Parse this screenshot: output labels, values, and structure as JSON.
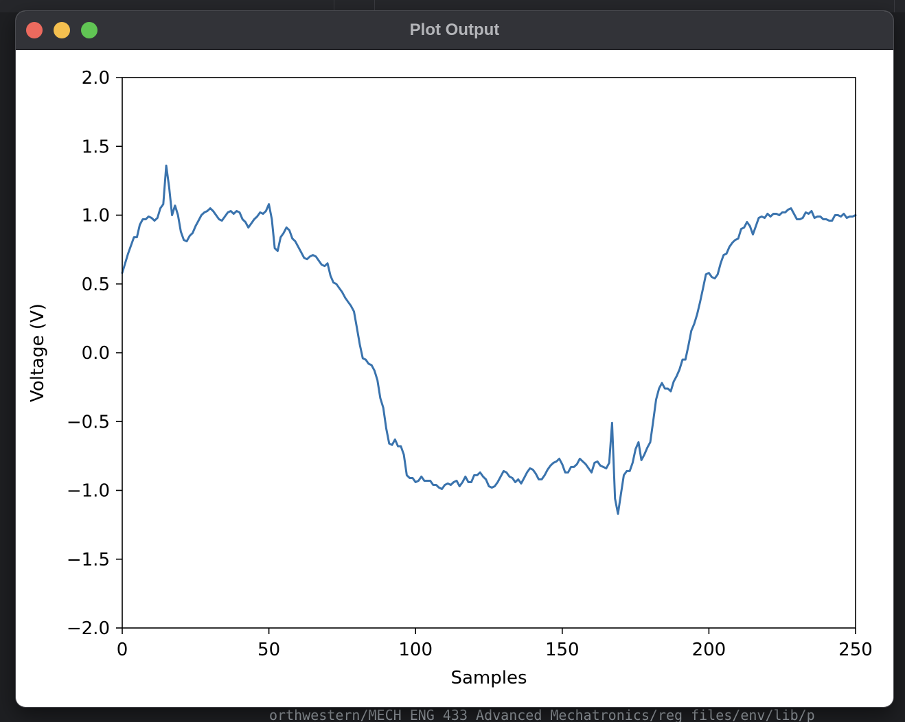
{
  "window": {
    "title": "Plot Output",
    "controls": [
      "close",
      "minimize",
      "maximize"
    ]
  },
  "background": {
    "terminal_line": "orthwestern/MECH ENG 433 Advanced Mechatronics/reg files/env/lib/p"
  },
  "colors": {
    "line": "#3a73ad",
    "close": "#ec6a5e",
    "minimize": "#f4bf4f",
    "maximize": "#61c554",
    "titlebar": "#323338"
  },
  "chart_data": {
    "type": "line",
    "title": "",
    "xlabel": "Samples",
    "ylabel": "Voltage (V)",
    "xlim": [
      0,
      250
    ],
    "ylim": [
      -2.0,
      2.0
    ],
    "xticks": [
      0,
      50,
      100,
      150,
      200,
      250
    ],
    "xtick_labels": [
      "0",
      "50",
      "100",
      "150",
      "200",
      "250"
    ],
    "yticks": [
      2.0,
      1.5,
      1.0,
      0.5,
      0.0,
      -0.5,
      -1.0,
      -1.5,
      -2.0
    ],
    "ytick_labels": [
      "2.0",
      "1.5",
      "1.0",
      "0.5",
      "0.0",
      "−0.5",
      "−1.0",
      "−1.5",
      "−2.0"
    ],
    "grid": false,
    "legend": "none",
    "series": [
      {
        "x": [
          0,
          2,
          4,
          5,
          6,
          7,
          8,
          9,
          10,
          11,
          12,
          13,
          14,
          15,
          16,
          17,
          18,
          19,
          20,
          21,
          22,
          23,
          24,
          25,
          26,
          27,
          28,
          29,
          30,
          31,
          32,
          33,
          34,
          35,
          36,
          37,
          38,
          39,
          40,
          41,
          42,
          43,
          44,
          45,
          46,
          47,
          48,
          49,
          50,
          51,
          52,
          53,
          54,
          55,
          56,
          57,
          58,
          59,
          60,
          61,
          62,
          63,
          64,
          65,
          66,
          67,
          68,
          69,
          70,
          71,
          72,
          73,
          74,
          75,
          76,
          77,
          78,
          79,
          80,
          81,
          82,
          83,
          84,
          85,
          86,
          87,
          88,
          89,
          90,
          91,
          92,
          93,
          94,
          95,
          96,
          97,
          98,
          99,
          100,
          101,
          102,
          103,
          104,
          105,
          106,
          107,
          108,
          109,
          110,
          111,
          112,
          113,
          114,
          115,
          116,
          117,
          118,
          119,
          120,
          121,
          122,
          123,
          124,
          125,
          126,
          127,
          128,
          129,
          130,
          131,
          132,
          133,
          134,
          135,
          136,
          137,
          138,
          139,
          140,
          141,
          142,
          143,
          144,
          145,
          146,
          147,
          148,
          149,
          150,
          151,
          152,
          153,
          154,
          155,
          156,
          157,
          158,
          159,
          160,
          161,
          162,
          163,
          164,
          165,
          166,
          167,
          168,
          169,
          170,
          171,
          172,
          173,
          174,
          175,
          176,
          177,
          178,
          179,
          180,
          181,
          182,
          183,
          184,
          185,
          186,
          187,
          188,
          189,
          190,
          191,
          192,
          193,
          194,
          195,
          196,
          197,
          198,
          199,
          200,
          201,
          202,
          203,
          204,
          205,
          206,
          207,
          208,
          209,
          210,
          211,
          212,
          213,
          214,
          215,
          216,
          217,
          218,
          219,
          220,
          221,
          222,
          223,
          224,
          225,
          226,
          227,
          228,
          229,
          230,
          231,
          232,
          233,
          234,
          235,
          236,
          237,
          238,
          239,
          240,
          241,
          242,
          243,
          244,
          245,
          246,
          247,
          248,
          249,
          250
        ],
        "y": [
          0.58,
          0.72,
          0.84,
          0.84,
          0.93,
          0.97,
          0.97,
          0.99,
          0.98,
          0.96,
          0.98,
          1.05,
          1.08,
          1.36,
          1.2,
          1.0,
          1.07,
          1.0,
          0.88,
          0.82,
          0.81,
          0.85,
          0.87,
          0.92,
          0.96,
          1.0,
          1.02,
          1.03,
          1.05,
          1.03,
          1.0,
          0.97,
          0.96,
          0.99,
          1.02,
          1.03,
          1.01,
          1.03,
          1.02,
          0.97,
          0.95,
          0.91,
          0.94,
          0.97,
          0.99,
          1.02,
          1.01,
          1.03,
          1.08,
          0.97,
          0.76,
          0.74,
          0.84,
          0.87,
          0.91,
          0.89,
          0.83,
          0.81,
          0.77,
          0.73,
          0.69,
          0.68,
          0.7,
          0.71,
          0.7,
          0.67,
          0.64,
          0.63,
          0.65,
          0.56,
          0.51,
          0.5,
          0.47,
          0.44,
          0.4,
          0.37,
          0.34,
          0.3,
          0.18,
          0.06,
          -0.04,
          -0.05,
          -0.08,
          -0.09,
          -0.13,
          -0.2,
          -0.33,
          -0.4,
          -0.55,
          -0.66,
          -0.67,
          -0.63,
          -0.68,
          -0.68,
          -0.74,
          -0.89,
          -0.91,
          -0.91,
          -0.94,
          -0.93,
          -0.9,
          -0.93,
          -0.93,
          -0.93,
          -0.96,
          -0.96,
          -0.98,
          -0.99,
          -0.96,
          -0.95,
          -0.96,
          -0.94,
          -0.93,
          -0.97,
          -0.94,
          -0.9,
          -0.94,
          -0.94,
          -0.89,
          -0.89,
          -0.87,
          -0.9,
          -0.92,
          -0.97,
          -0.98,
          -0.97,
          -0.94,
          -0.9,
          -0.86,
          -0.87,
          -0.9,
          -0.91,
          -0.94,
          -0.92,
          -0.95,
          -0.91,
          -0.87,
          -0.84,
          -0.85,
          -0.88,
          -0.92,
          -0.92,
          -0.89,
          -0.85,
          -0.82,
          -0.8,
          -0.79,
          -0.77,
          -0.81,
          -0.87,
          -0.87,
          -0.83,
          -0.83,
          -0.81,
          -0.77,
          -0.79,
          -0.81,
          -0.84,
          -0.87,
          -0.8,
          -0.79,
          -0.82,
          -0.83,
          -0.84,
          -0.8,
          -0.51,
          -1.06,
          -1.17,
          -1.03,
          -0.89,
          -0.86,
          -0.86,
          -0.8,
          -0.7,
          -0.65,
          -0.78,
          -0.74,
          -0.69,
          -0.65,
          -0.5,
          -0.34,
          -0.26,
          -0.22,
          -0.26,
          -0.26,
          -0.28,
          -0.21,
          -0.17,
          -0.12,
          -0.05,
          -0.05,
          0.05,
          0.16,
          0.21,
          0.28,
          0.37,
          0.47,
          0.57,
          0.58,
          0.55,
          0.54,
          0.57,
          0.65,
          0.71,
          0.72,
          0.77,
          0.8,
          0.82,
          0.83,
          0.9,
          0.91,
          0.95,
          0.92,
          0.86,
          0.92,
          0.98,
          0.99,
          0.98,
          1.01,
          0.99,
          1.01,
          1.01,
          1.0,
          1.02,
          1.02,
          1.04,
          1.05,
          1.01,
          0.97,
          0.97,
          0.98,
          1.02,
          1.01,
          1.03,
          0.98,
          0.99,
          0.99,
          0.97,
          0.97,
          0.96,
          0.96,
          1.0,
          1.0,
          0.99,
          1.01,
          0.98,
          0.99,
          0.99,
          1.0
        ]
      }
    ]
  }
}
